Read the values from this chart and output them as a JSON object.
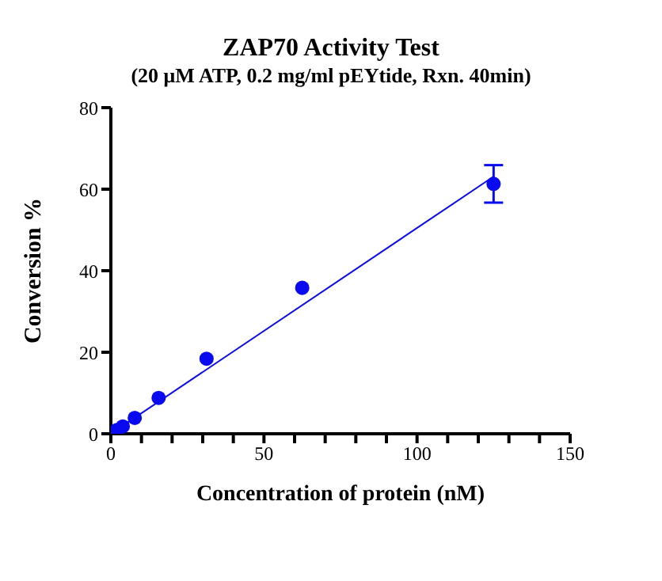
{
  "chart_data": {
    "type": "scatter",
    "title": "ZAP70 Activity Test",
    "subtitle": "(20 μM ATP, 0.2 mg/ml pEYtide, Rxn. 40min)",
    "xlabel": "Concentration of protein (nM)",
    "ylabel": "Conversion %",
    "xlim": [
      0,
      150
    ],
    "xticks": [
      0,
      {
        "value": 10,
        "label": null
      },
      {
        "value": 20,
        "label": null
      },
      {
        "value": 30,
        "label": null
      },
      {
        "value": 40,
        "label": null
      },
      50,
      {
        "value": 60,
        "label": null
      },
      {
        "value": 70,
        "label": null
      },
      {
        "value": 80,
        "label": null
      },
      {
        "value": 90,
        "label": null
      },
      100,
      {
        "value": 110,
        "label": null
      },
      {
        "value": 120,
        "label": null
      },
      {
        "value": 130,
        "label": null
      },
      {
        "value": 140,
        "label": null
      },
      150
    ],
    "ylim": [
      0,
      80
    ],
    "yticks": [
      0,
      20,
      40,
      60,
      80
    ],
    "grid": false,
    "series": [
      {
        "color": "#0a0af0",
        "marker": "circle",
        "x": [
          1.95,
          3.9,
          7.8,
          15.6,
          31.25,
          62.5,
          125
        ],
        "values": [
          0.9,
          1.8,
          3.9,
          8.8,
          18.4,
          35.8,
          61.3
        ],
        "errors": [
          null,
          null,
          null,
          null,
          null,
          null,
          4.6
        ]
      },
      {
        "type": "line",
        "color": "#0a0af0",
        "marker": "none",
        "line_style": "solid",
        "x": [
          0,
          125
        ],
        "values": [
          0,
          63.1
        ]
      }
    ]
  }
}
